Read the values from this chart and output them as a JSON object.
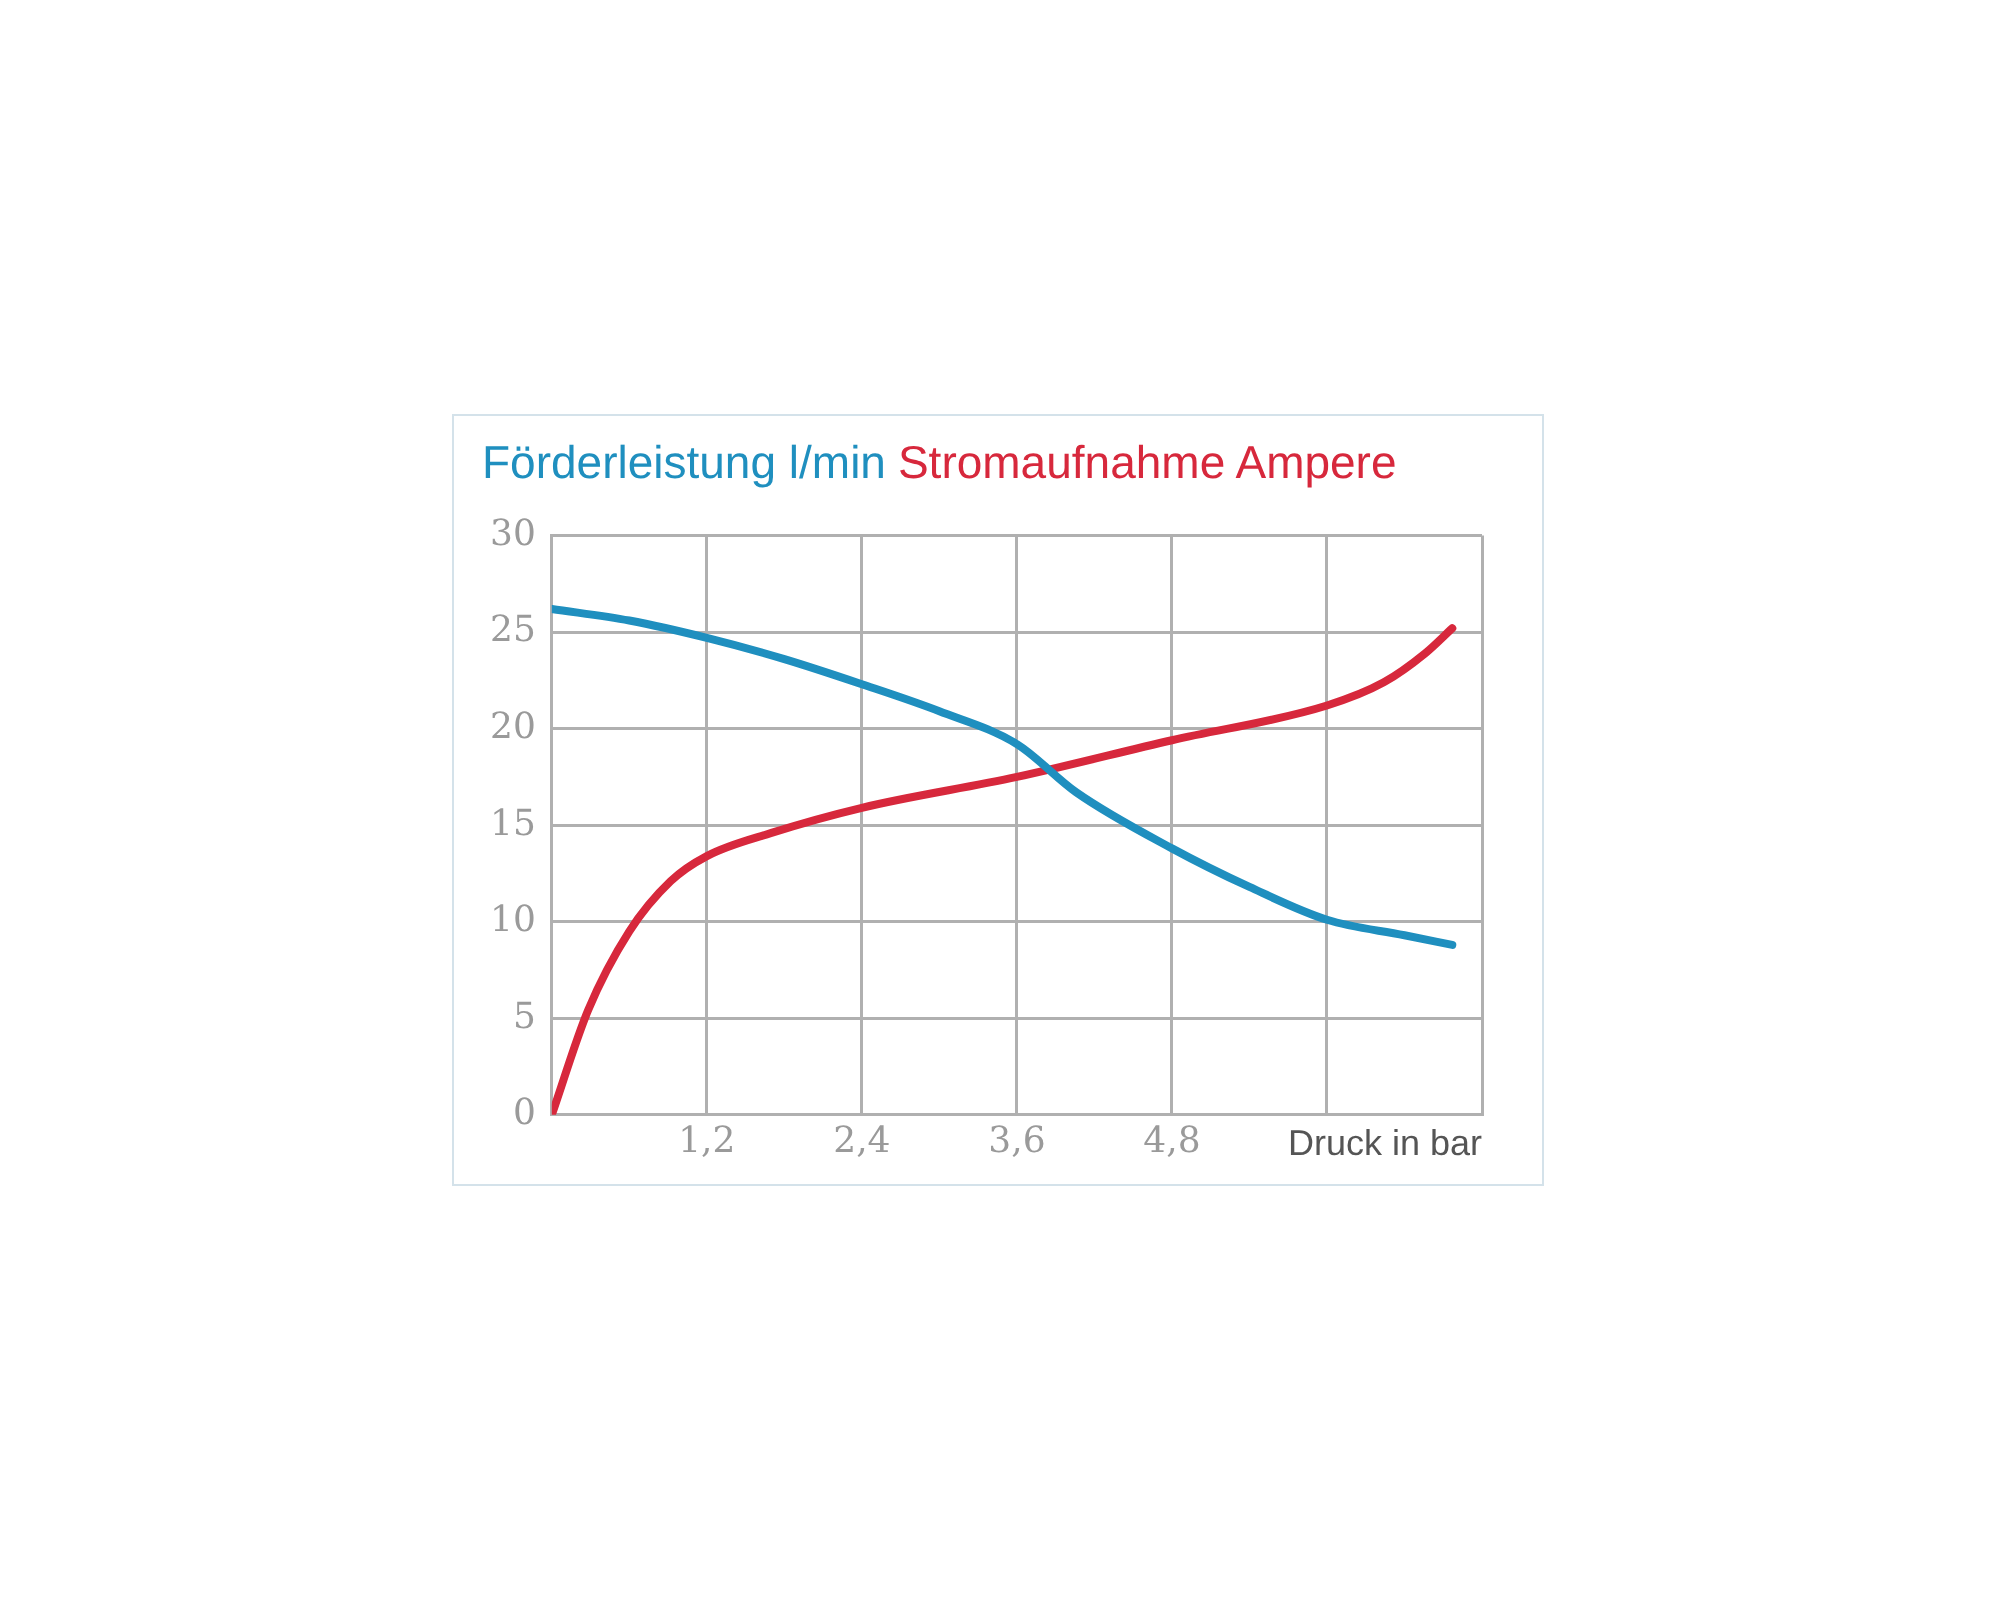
{
  "chart_data": {
    "type": "line",
    "xlabel": "Druck in bar",
    "legend": "top",
    "grid": true,
    "xlim": [
      0,
      7.2
    ],
    "xticks": [
      {
        "value": 1.2,
        "label": "1,2"
      },
      {
        "value": 2.4,
        "label": "2,4"
      },
      {
        "value": 3.6,
        "label": "3,6"
      },
      {
        "value": 4.8,
        "label": "4,8"
      },
      {
        "value": 6.0,
        "label": null
      },
      {
        "value": 7.2,
        "label": null
      }
    ],
    "ylim": [
      0,
      30
    ],
    "yticks": [
      0,
      5,
      10,
      15,
      20,
      25,
      30
    ],
    "series": [
      {
        "name": "Förderleistung l/min",
        "color": "#1f8fbf",
        "x": [
          0,
          0.6,
          1.2,
          1.8,
          2.4,
          3.0,
          3.6,
          4.06,
          4.8,
          5.4,
          6.0,
          6.6,
          6.97
        ],
        "values": [
          26.2,
          25.6,
          24.7,
          23.6,
          22.3,
          20.9,
          19.2,
          16.7,
          13.8,
          11.8,
          10.1,
          9.3,
          8.8
        ]
      },
      {
        "name": "Stromaufnahme Ampere",
        "color": "#d7283c",
        "x": [
          0,
          0.28,
          0.6,
          0.92,
          1.2,
          1.7,
          2.4,
          3.6,
          4.8,
          6.0,
          6.44,
          6.76,
          6.97
        ],
        "values": [
          0,
          5.4,
          9.5,
          12.1,
          13.4,
          14.6,
          15.9,
          17.5,
          19.4,
          21.2,
          22.4,
          23.9,
          25.2
        ]
      }
    ]
  }
}
